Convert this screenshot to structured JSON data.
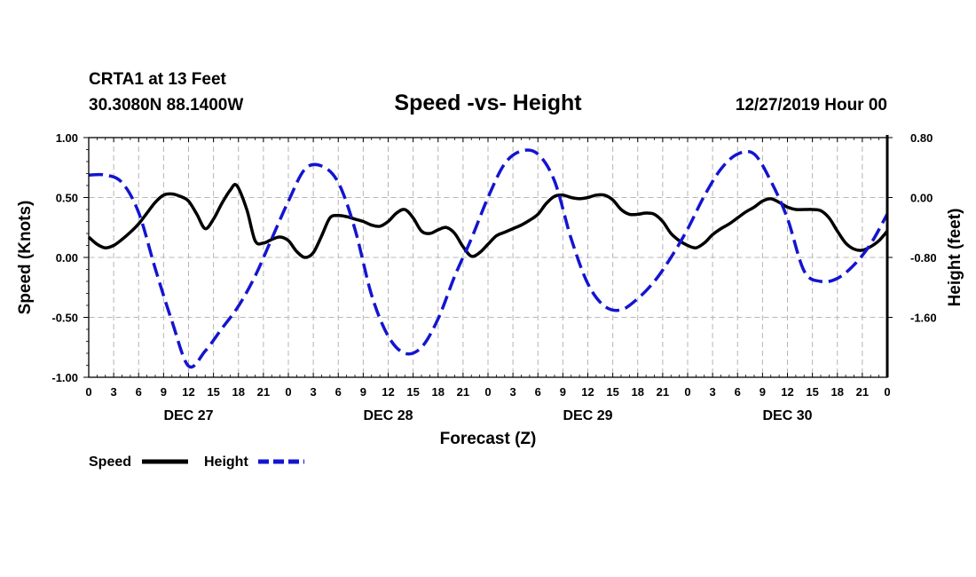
{
  "header": {
    "station": "CRTA1 at 13 Feet",
    "coords": "30.3080N 88.1400W",
    "title": "Speed -vs- Height",
    "datetime": "12/27/2019 Hour 00"
  },
  "chart_data": {
    "type": "line",
    "title": "Speed -vs- Height",
    "xlabel": "Forecast (Z)",
    "ylabel_left": "Speed (Knots)",
    "ylabel_right": "Height (feet)",
    "x_range_hours": [
      0,
      96
    ],
    "ylim_left": [
      -1.0,
      1.0
    ],
    "ylim_right": [
      -2.4,
      0.8
    ],
    "left_tick_labels": [
      "1.00",
      "0.50",
      "0.00",
      "-0.50",
      "-1.00"
    ],
    "left_tick_values": [
      1.0,
      0.5,
      0.0,
      -0.5,
      -1.0
    ],
    "right_tick_labels": [
      "0.80",
      "0.00",
      "-0.80",
      "-1.60"
    ],
    "right_tick_values": [
      0.8,
      0.0,
      -0.8,
      -1.6
    ],
    "x_tick_labels": [
      "0",
      "3",
      "6",
      "9",
      "12",
      "15",
      "18",
      "21",
      "0",
      "3",
      "6",
      "9",
      "12",
      "15",
      "18",
      "21",
      "0",
      "3",
      "6",
      "9",
      "12",
      "15",
      "18",
      "21",
      "0",
      "3",
      "6",
      "9",
      "12",
      "15",
      "18",
      "21",
      "0"
    ],
    "day_labels": [
      {
        "label": "DEC 27",
        "hour": 12
      },
      {
        "label": "DEC 28",
        "hour": 36
      },
      {
        "label": "DEC 29",
        "hour": 60
      },
      {
        "label": "DEC 30",
        "hour": 84
      }
    ],
    "grid": true,
    "legend": [
      {
        "name": "Speed",
        "color": "#000000",
        "style": "solid"
      },
      {
        "name": "Height",
        "color": "#1414d0",
        "style": "dashed"
      }
    ],
    "series": [
      {
        "name": "Speed",
        "axis": "left",
        "color": "#000000",
        "x": [
          0,
          1,
          2,
          3,
          4,
          5,
          6,
          7,
          8,
          9,
          10,
          11,
          12,
          13,
          14,
          15,
          16,
          17,
          17.8,
          19,
          20,
          21,
          22,
          23,
          24,
          25,
          26,
          27,
          28,
          29,
          30,
          31,
          32,
          33,
          34,
          35,
          36,
          37,
          38,
          39,
          40,
          41,
          42,
          43,
          44,
          45,
          46,
          47,
          48,
          49,
          50,
          51,
          52,
          53,
          54,
          55,
          56,
          57,
          58,
          59,
          60,
          61,
          62,
          63,
          64,
          65,
          66,
          67,
          68,
          69,
          70,
          71,
          72,
          73,
          74,
          75,
          76,
          77,
          78,
          79,
          80,
          81,
          82,
          83,
          84,
          85,
          86,
          87,
          88,
          89,
          90,
          91,
          92,
          93,
          94,
          95,
          96
        ],
        "values": [
          0.17,
          0.11,
          0.08,
          0.1,
          0.15,
          0.21,
          0.28,
          0.37,
          0.46,
          0.52,
          0.53,
          0.51,
          0.47,
          0.36,
          0.24,
          0.32,
          0.45,
          0.56,
          0.6,
          0.4,
          0.14,
          0.12,
          0.15,
          0.17,
          0.14,
          0.05,
          0.0,
          0.04,
          0.18,
          0.33,
          0.35,
          0.34,
          0.32,
          0.3,
          0.27,
          0.26,
          0.3,
          0.37,
          0.4,
          0.33,
          0.22,
          0.2,
          0.23,
          0.25,
          0.2,
          0.09,
          0.01,
          0.04,
          0.11,
          0.18,
          0.21,
          0.24,
          0.27,
          0.31,
          0.36,
          0.45,
          0.51,
          0.52,
          0.5,
          0.49,
          0.5,
          0.52,
          0.52,
          0.48,
          0.4,
          0.36,
          0.36,
          0.37,
          0.36,
          0.3,
          0.2,
          0.14,
          0.1,
          0.08,
          0.12,
          0.19,
          0.24,
          0.28,
          0.33,
          0.38,
          0.42,
          0.47,
          0.49,
          0.46,
          0.42,
          0.4,
          0.4,
          0.4,
          0.39,
          0.33,
          0.22,
          0.12,
          0.07,
          0.06,
          0.09,
          0.14,
          0.22
        ]
      },
      {
        "name": "Height",
        "axis": "right",
        "color": "#1414d0",
        "x": [
          0,
          2,
          4,
          6,
          8,
          10,
          12,
          14,
          16,
          18,
          20,
          22,
          24,
          26,
          28,
          30,
          32,
          34,
          36,
          38,
          40,
          42,
          44,
          46,
          48,
          50,
          52,
          54,
          56,
          58,
          60,
          62,
          64,
          66,
          68,
          70,
          72,
          74,
          76,
          78,
          80,
          82,
          84,
          86,
          88,
          90,
          92,
          94,
          96
        ],
        "values": [
          0.3,
          0.3,
          0.2,
          -0.2,
          -0.95,
          -1.65,
          -2.25,
          -2.05,
          -1.75,
          -1.45,
          -1.05,
          -0.55,
          -0.05,
          0.38,
          0.42,
          0.2,
          -0.42,
          -1.3,
          -1.85,
          -2.08,
          -2.0,
          -1.62,
          -1.05,
          -0.55,
          0.0,
          0.45,
          0.62,
          0.58,
          0.22,
          -0.55,
          -1.15,
          -1.45,
          -1.5,
          -1.35,
          -1.12,
          -0.8,
          -0.42,
          0.02,
          0.38,
          0.58,
          0.58,
          0.22,
          -0.28,
          -0.98,
          -1.12,
          -1.08,
          -0.9,
          -0.62,
          -0.22
        ]
      }
    ]
  }
}
